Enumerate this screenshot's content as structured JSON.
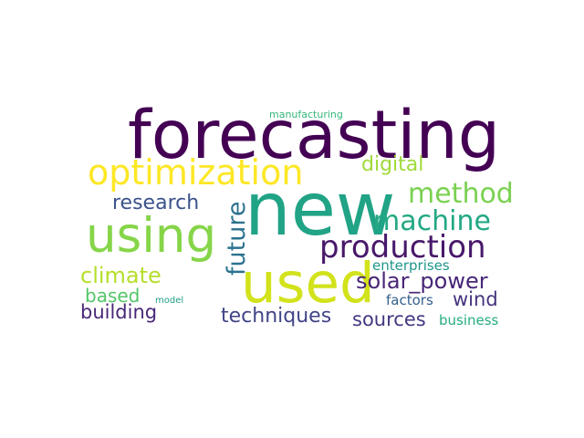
{
  "words": [
    {
      "id": "forecasting",
      "text": "forecasting",
      "color": "#440154"
    },
    {
      "id": "new",
      "text": "new",
      "color": "#21a386"
    },
    {
      "id": "optimization",
      "text": "optimization",
      "color": "#fde725"
    },
    {
      "id": "using",
      "text": "using",
      "color": "#86d549"
    },
    {
      "id": "used",
      "text": "used",
      "color": "#d2e21b"
    },
    {
      "id": "production",
      "text": "production",
      "color": "#48186a"
    },
    {
      "id": "method",
      "text": "method",
      "color": "#7ad151"
    },
    {
      "id": "machine",
      "text": "machine",
      "color": "#22a884"
    },
    {
      "id": "digital",
      "text": "digital",
      "color": "#9fda3a"
    },
    {
      "id": "research",
      "text": "research",
      "color": "#3b528b"
    },
    {
      "id": "future",
      "text": "future",
      "color": "#2c728e"
    },
    {
      "id": "climate",
      "text": "climate",
      "color": "#b5de2b"
    },
    {
      "id": "solar_power",
      "text": "solar_power",
      "color": "#482677"
    },
    {
      "id": "based",
      "text": "based",
      "color": "#54c568"
    },
    {
      "id": "building",
      "text": "building",
      "color": "#482878"
    },
    {
      "id": "techniques",
      "text": "techniques",
      "color": "#414487"
    },
    {
      "id": "sources",
      "text": "sources",
      "color": "#453781"
    },
    {
      "id": "wind",
      "text": "wind",
      "color": "#46337e"
    },
    {
      "id": "enterprises",
      "text": "enterprises",
      "color": "#1f968b"
    },
    {
      "id": "factors",
      "text": "factors",
      "color": "#355f8d"
    },
    {
      "id": "business",
      "text": "business",
      "color": "#26ad81"
    },
    {
      "id": "model",
      "text": "model",
      "color": "#1fa188"
    },
    {
      "id": "manufacturing",
      "text": "manufacturing",
      "color": "#35b779"
    }
  ]
}
